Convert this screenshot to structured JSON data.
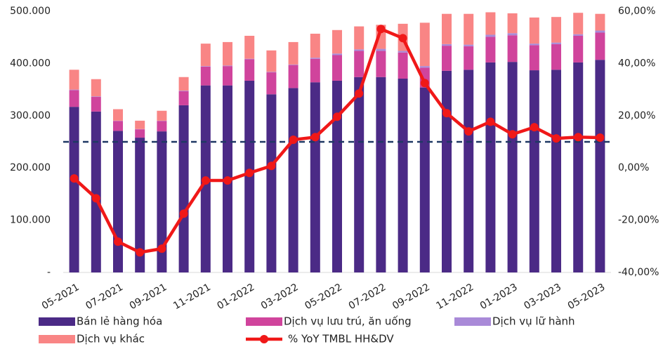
{
  "chart_data": {
    "type": "bar",
    "stacked": true,
    "categories": [
      "05-2021",
      null,
      "07-2021",
      null,
      "09-2021",
      null,
      "11-2021",
      null,
      "01-2022",
      null,
      "03-2022",
      null,
      "05-2022",
      null,
      "07-2022",
      null,
      "09-2022",
      null,
      "11-2022",
      null,
      "01-2023",
      null,
      "03-2023",
      null,
      "05-2023"
    ],
    "series": [
      {
        "name": "Bán lẻ hàng hóa",
        "color": "#4b2a86",
        "values": [
          317000,
          308000,
          271000,
          258000,
          270000,
          320000,
          358000,
          358000,
          367000,
          341000,
          353000,
          364000,
          367000,
          374000,
          374000,
          371000,
          354000,
          386000,
          388000,
          402000,
          403000,
          387000,
          388000,
          402000,
          407000
        ]
      },
      {
        "name": "Dịch vụ lưu trú, ăn uống",
        "color": "#d0449c",
        "values": [
          32000,
          28000,
          19000,
          16000,
          20000,
          27000,
          36000,
          37000,
          41000,
          42000,
          44000,
          45000,
          49000,
          50000,
          50000,
          50000,
          38000,
          48000,
          45000,
          49000,
          51000,
          48000,
          49000,
          51000,
          52000
        ]
      },
      {
        "name": "Dịch vụ lữ hành",
        "color": "#a98ad8",
        "values": [
          1000,
          1000,
          500,
          500,
          500,
          1000,
          1000,
          1000,
          1000,
          1000,
          1000,
          2000,
          3000,
          3000,
          4000,
          3000,
          3000,
          3000,
          3000,
          4000,
          4000,
          3000,
          3000,
          3000,
          4000
        ]
      },
      {
        "name": "Dịch vụ khác",
        "color": "#f98585",
        "values": [
          38000,
          33000,
          22000,
          16000,
          19000,
          26000,
          43000,
          45000,
          44000,
          41000,
          43000,
          46000,
          45000,
          44000,
          46000,
          52000,
          83000,
          58000,
          59000,
          43000,
          38000,
          50000,
          49000,
          41000,
          32000
        ]
      },
      {
        "name": "% YoY TMBL HH&DV",
        "color": "#f01818",
        "type": "line",
        "axis": "y2",
        "values": [
          -4.0,
          -11.6,
          -28.2,
          -32.3,
          -30.9,
          -17.5,
          -4.8,
          -4.8,
          -1.9,
          0.8,
          10.8,
          11.8,
          19.6,
          28.5,
          53.2,
          49.7,
          32.5,
          21.0,
          14.0,
          17.7,
          12.9,
          15.6,
          11.3,
          11.8,
          11.6
        ]
      }
    ],
    "ylim": [
      0,
      500000
    ],
    "yticks": [
      {
        "value": 0,
        "label": "-"
      },
      {
        "value": 100000,
        "label": "100.000"
      },
      {
        "value": 200000,
        "label": "200.000"
      },
      {
        "value": 300000,
        "label": "300.000"
      },
      {
        "value": 400000,
        "label": "400.000"
      },
      {
        "value": 500000,
        "label": "500.000"
      }
    ],
    "y2lim": [
      -40,
      60
    ],
    "y2ticks": [
      {
        "value": -40,
        "label": "-40,00%"
      },
      {
        "value": -20,
        "label": "-20,00%"
      },
      {
        "value": 0,
        "label": "0,00%"
      },
      {
        "value": 20,
        "label": "20,00%"
      },
      {
        "value": 40,
        "label": "40,00%"
      },
      {
        "value": 60,
        "label": "60,00%"
      }
    ],
    "hline": {
      "value": 10,
      "axis": "y2",
      "color": "#1f3864"
    },
    "legend": "bottom"
  }
}
